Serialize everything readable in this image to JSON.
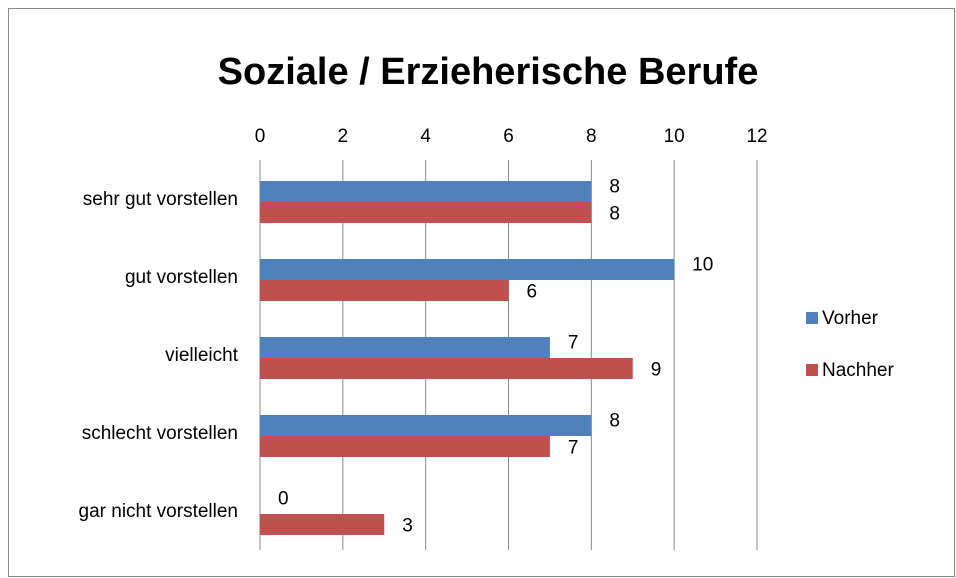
{
  "chart_data": {
    "type": "bar",
    "orientation": "horizontal",
    "title": "Soziale / Erzieherische Berufe",
    "categories": [
      "sehr gut vorstellen",
      "gut vorstellen",
      "vielleicht",
      "schlecht vorstellen",
      "gar nicht vorstellen"
    ],
    "series": [
      {
        "name": "Vorher",
        "color": "#4f81bd",
        "values": [
          8,
          10,
          7,
          8,
          0
        ]
      },
      {
        "name": "Nachher",
        "color": "#c0504d",
        "values": [
          8,
          6,
          9,
          7,
          3
        ]
      }
    ],
    "xlim": [
      0,
      12
    ],
    "xticks": [
      0,
      2,
      4,
      6,
      8,
      10,
      12
    ],
    "grid": true,
    "legend": "right"
  }
}
